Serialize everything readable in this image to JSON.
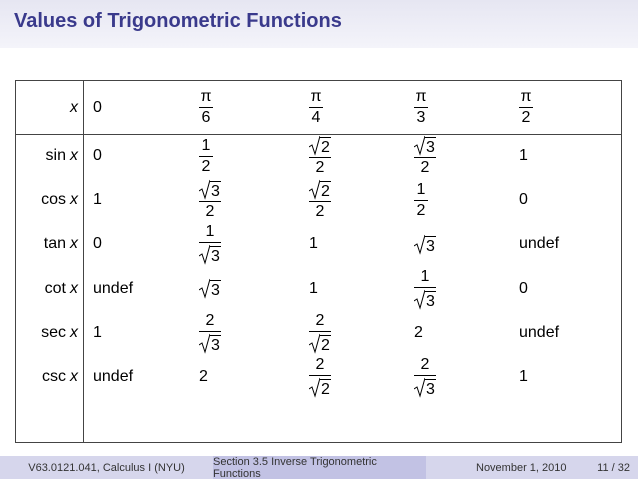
{
  "header": {
    "title": "Values of Trigonometric Functions"
  },
  "table": {
    "rows": [
      {
        "label": {
          "var": "x"
        },
        "cells": [
          {
            "text": "0"
          },
          {
            "num": "π",
            "den": "6"
          },
          {
            "num": "π",
            "den": "4"
          },
          {
            "num": "π",
            "den": "3"
          },
          {
            "num": "π",
            "den": "2"
          }
        ]
      },
      {
        "label": {
          "fn": "sin",
          "var": "x"
        },
        "cells": [
          {
            "text": "0"
          },
          {
            "num": "1",
            "den": "2"
          },
          {
            "num": {
              "sqrt": "2"
            },
            "den": "2"
          },
          {
            "num": {
              "sqrt": "3"
            },
            "den": "2"
          },
          {
            "text": "1"
          }
        ]
      },
      {
        "label": {
          "fn": "cos",
          "var": "x"
        },
        "cells": [
          {
            "text": "1"
          },
          {
            "num": {
              "sqrt": "3"
            },
            "den": "2"
          },
          {
            "num": {
              "sqrt": "2"
            },
            "den": "2"
          },
          {
            "num": "1",
            "den": "2"
          },
          {
            "text": "0"
          }
        ]
      },
      {
        "label": {
          "fn": "tan",
          "var": "x"
        },
        "cells": [
          {
            "text": "0"
          },
          {
            "num": "1",
            "den": {
              "sqrt": "3"
            }
          },
          {
            "text": "1"
          },
          {
            "sqrt": "3"
          },
          {
            "text": "undef"
          }
        ]
      },
      {
        "label": {
          "fn": "cot",
          "var": "x"
        },
        "cells": [
          {
            "text": "undef"
          },
          {
            "sqrt": "3"
          },
          {
            "text": "1"
          },
          {
            "num": "1",
            "den": {
              "sqrt": "3"
            }
          },
          {
            "text": "0"
          }
        ]
      },
      {
        "label": {
          "fn": "sec",
          "var": "x"
        },
        "cells": [
          {
            "text": "1"
          },
          {
            "num": "2",
            "den": {
              "sqrt": "3"
            }
          },
          {
            "num": "2",
            "den": {
              "sqrt": "2"
            }
          },
          {
            "text": "2"
          },
          {
            "text": "undef"
          }
        ]
      },
      {
        "label": {
          "fn": "csc",
          "var": "x"
        },
        "cells": [
          {
            "text": "undef"
          },
          {
            "text": "2"
          },
          {
            "num": "2",
            "den": {
              "sqrt": "2"
            }
          },
          {
            "num": "2",
            "den": {
              "sqrt": "3"
            }
          },
          {
            "text": "1"
          }
        ]
      }
    ]
  },
  "footer": {
    "left": "V63.0121.041, Calculus I (NYU)",
    "middle": "Section 3.5 Inverse Trigonometric Functions",
    "date": "November 1, 2010",
    "page": "11 / 32"
  }
}
